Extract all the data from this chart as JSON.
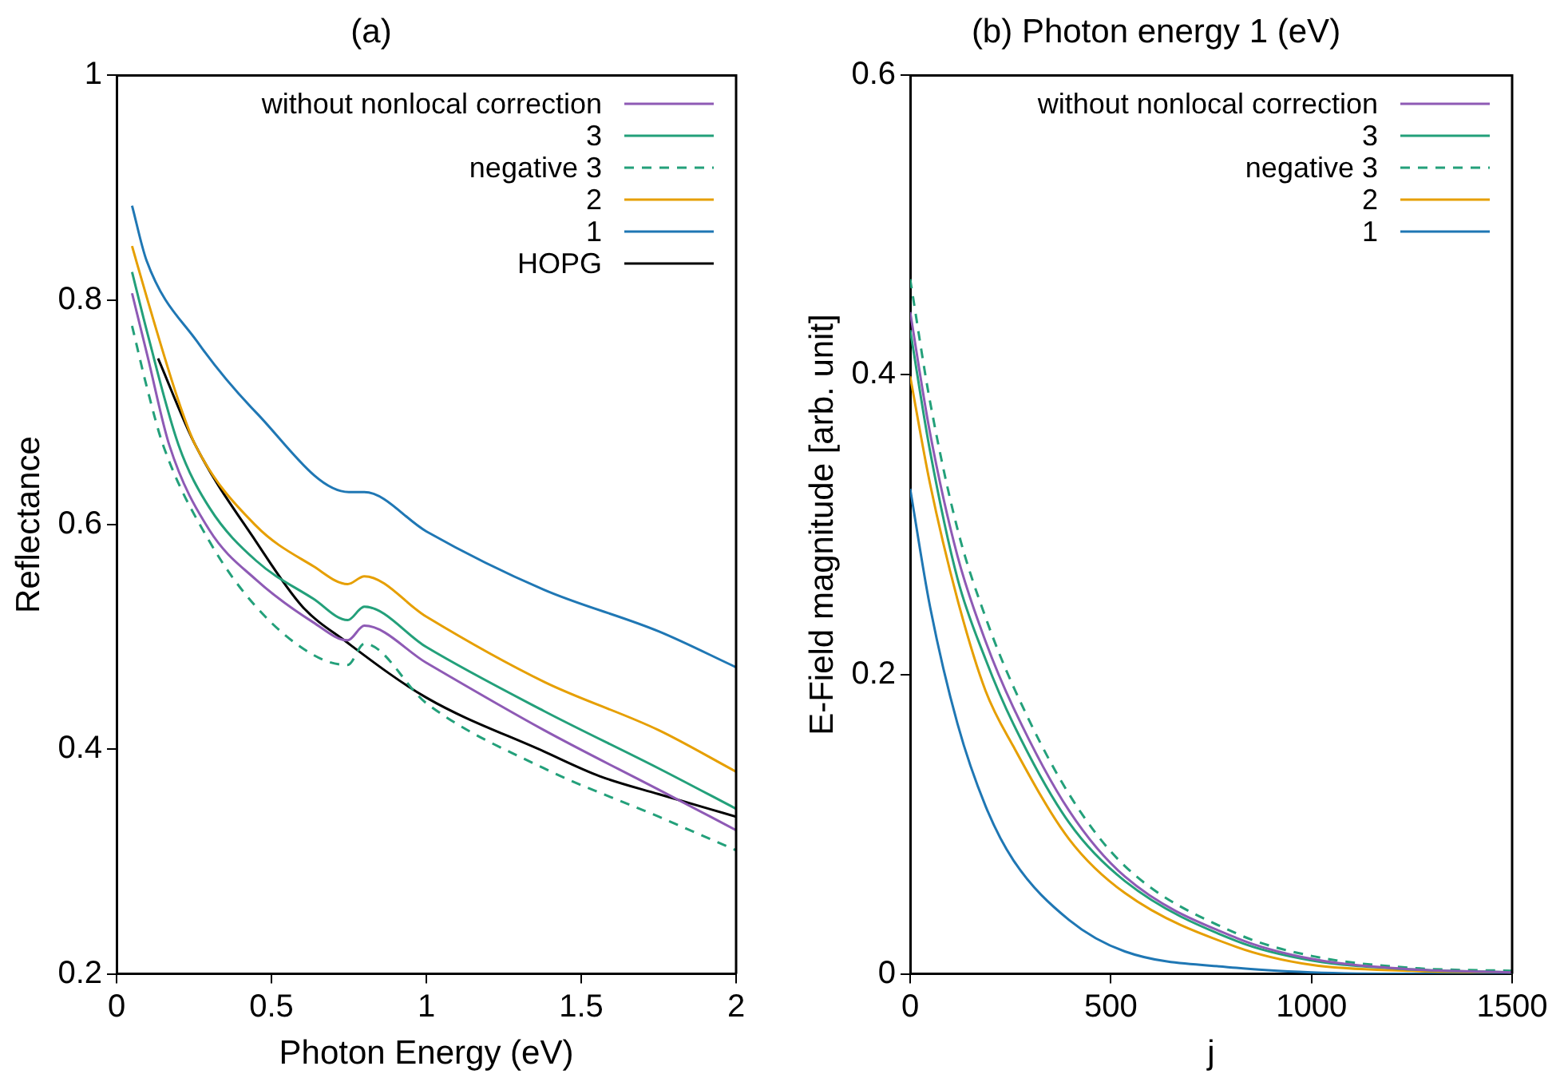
{
  "chart_data": [
    {
      "type": "line",
      "title": "(a)",
      "xlabel": "Photon Energy (eV)",
      "ylabel": "Reflectance",
      "xlim": [
        0,
        2
      ],
      "xticks": [
        0,
        0.5,
        1,
        1.5,
        2
      ],
      "ylim": [
        0.2,
        1
      ],
      "yticks": [
        0.2,
        0.4,
        0.6,
        0.8,
        1
      ],
      "grid": false,
      "legend": "top right",
      "marker": "none",
      "series": [
        {
          "name": "without nonlocal correction",
          "color": "#8e5ab5",
          "x": [
            0.05,
            0.1,
            0.17,
            0.3,
            0.45,
            0.635,
            0.746,
            0.8,
            1.0,
            1.38,
            1.75,
            2.0
          ],
          "values": [
            0.806,
            0.75,
            0.671,
            0.595,
            0.551,
            0.513,
            0.497,
            0.51,
            0.477,
            0.417,
            0.364,
            0.328
          ]
        },
        {
          "name": "3",
          "color": "#23a07a",
          "x": [
            0.05,
            0.1,
            0.2,
            0.3,
            0.45,
            0.635,
            0.746,
            0.8,
            1.0,
            1.38,
            1.75,
            2.0
          ],
          "values": [
            0.825,
            0.77,
            0.671,
            0.615,
            0.568,
            0.534,
            0.515,
            0.527,
            0.491,
            0.434,
            0.383,
            0.347
          ]
        },
        {
          "name": "negative 3",
          "color": "#23a07a",
          "line_style": "dashed",
          "x": [
            0.05,
            0.1,
            0.15,
            0.3,
            0.45,
            0.635,
            0.746,
            0.8,
            1.0,
            1.38,
            1.75,
            2.0
          ],
          "values": [
            0.777,
            0.72,
            0.671,
            0.585,
            0.527,
            0.484,
            0.475,
            0.494,
            0.441,
            0.383,
            0.34,
            0.31
          ]
        },
        {
          "name": "2",
          "color": "#e69f00",
          "x": [
            0.05,
            0.1,
            0.2,
            0.254,
            0.45,
            0.635,
            0.746,
            0.8,
            1.0,
            1.38,
            1.75,
            2.0
          ],
          "values": [
            0.848,
            0.8,
            0.71,
            0.671,
            0.599,
            0.563,
            0.547,
            0.554,
            0.518,
            0.46,
            0.417,
            0.38
          ]
        },
        {
          "name": "1",
          "color": "#1f77b4",
          "x": [
            0.05,
            0.097,
            0.26,
            0.45,
            0.75,
            0.8,
            1.0,
            1.38,
            1.75,
            2.0
          ],
          "values": [
            0.884,
            0.835,
            0.763,
            0.7,
            0.629,
            0.629,
            0.594,
            0.542,
            0.505,
            0.473
          ]
        },
        {
          "name": "HOPG",
          "color": "#000000",
          "x": [
            0.134,
            0.254,
            0.45,
            0.6,
            0.74,
            1.0,
            1.38,
            1.56,
            1.75,
            2.0
          ],
          "values": [
            0.748,
            0.671,
            0.585,
            0.527,
            0.496,
            0.446,
            0.398,
            0.376,
            0.36,
            0.34
          ]
        }
      ]
    },
    {
      "type": "line",
      "title": "(b) Photon energy 1 (eV)",
      "xlabel": "j",
      "ylabel": "E-Field magnitude [arb. unit]",
      "xlim": [
        0,
        1500
      ],
      "xticks": [
        0,
        500,
        1000,
        1500
      ],
      "ylim": [
        0,
        0.6
      ],
      "yticks": [
        0,
        0.2,
        0.4,
        0.6
      ],
      "grid": false,
      "legend": "top right",
      "marker": "none",
      "x": [
        0,
        49,
        118,
        188,
        257,
        396,
        535,
        813,
        1000,
        1250,
        1500
      ],
      "series": [
        {
          "name": "without nonlocal correction",
          "color": "#8e5ab5",
          "values": [
            0.442,
            0.362,
            0.279,
            0.222,
            0.178,
            0.109,
            0.065,
            0.024,
            0.01,
            0.003,
            0.001
          ]
        },
        {
          "name": "3",
          "color": "#23a07a",
          "values": [
            0.43,
            0.35,
            0.264,
            0.21,
            0.167,
            0.101,
            0.062,
            0.022,
            0.009,
            0.003,
            0.001
          ]
        },
        {
          "name": "negative 3",
          "color": "#23a07a",
          "line_style": "dashed",
          "values": [
            0.464,
            0.383,
            0.297,
            0.238,
            0.192,
            0.12,
            0.072,
            0.027,
            0.012,
            0.004,
            0.002
          ]
        },
        {
          "name": "2",
          "color": "#e69f00",
          "values": [
            0.399,
            0.328,
            0.25,
            0.189,
            0.152,
            0.09,
            0.054,
            0.018,
            0.006,
            0.002,
            0.001
          ]
        },
        {
          "name": "1",
          "color": "#1f77b4",
          "values": [
            0.324,
            0.246,
            0.167,
            0.112,
            0.076,
            0.036,
            0.015,
            0.004,
            0.001,
            0,
            0
          ]
        }
      ]
    }
  ]
}
